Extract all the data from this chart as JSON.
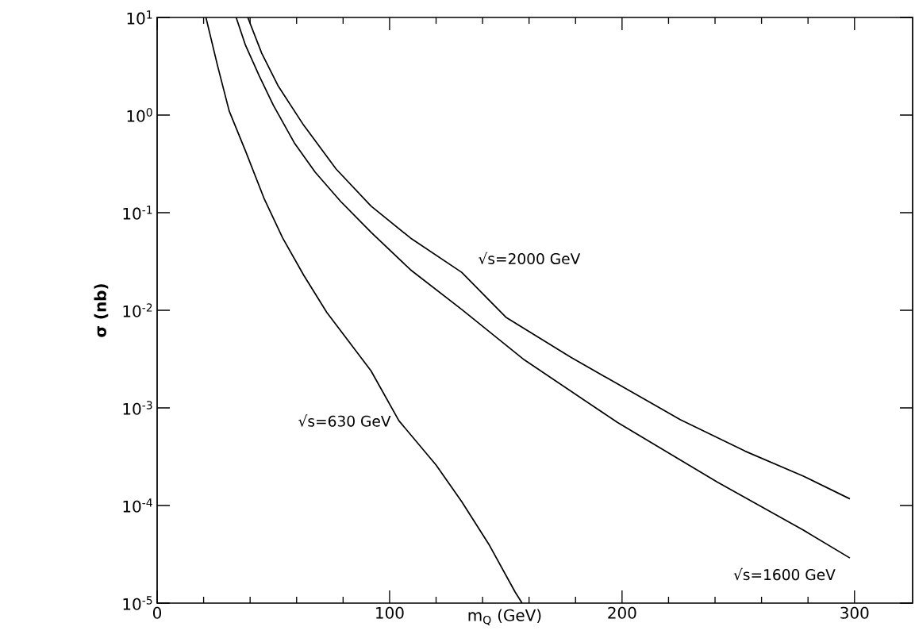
{
  "chart_data": {
    "type": "line",
    "xlabel": "m$_{Q}$ (GeV)",
    "ylabel": "σ (nb)",
    "log": "y",
    "grid": false,
    "marker": "none",
    "line_style": "solid",
    "xlim": [
      0,
      325
    ],
    "ylim": [
      1e-05,
      10
    ],
    "xticks": [
      0,
      100,
      200,
      300
    ],
    "yticks": [
      {
        "value": 10,
        "label": "10$^{1}$"
      },
      {
        "value": 1,
        "label": "10$^{0}$"
      },
      {
        "value": 0.1,
        "label": "10$^{-1}$"
      },
      {
        "value": 0.01,
        "label": "10$^{-2}$"
      },
      {
        "value": 0.001,
        "label": "10$^{-3}$"
      },
      {
        "value": 0.0001,
        "label": "10$^{-4}$"
      },
      {
        "value": 1e-05,
        "label": "10$^{-5}$"
      }
    ],
    "series": [
      {
        "name": "√s=630 GeV",
        "color": "#000000",
        "x": [
          21,
          26,
          31,
          38,
          46,
          54,
          63,
          73,
          92,
          104,
          120,
          131,
          143,
          154,
          157
        ],
        "values": [
          10,
          3.2,
          1.1,
          0.43,
          0.14,
          0.055,
          0.023,
          0.0095,
          0.0024,
          0.00074,
          0.00026,
          0.00011,
          3.9e-05,
          1.3e-05,
          1e-05
        ]
      },
      {
        "name": "√s=1600 GeV",
        "color": "#000000",
        "x": [
          34,
          38,
          44,
          50,
          59,
          68,
          79,
          92,
          109,
          131,
          158,
          198,
          241,
          278,
          298
        ],
        "values": [
          10,
          5.2,
          2.5,
          1.26,
          0.52,
          0.26,
          0.13,
          0.063,
          0.026,
          0.0102,
          0.0031,
          0.00071,
          0.000174,
          5.6e-05,
          2.9e-05
        ]
      },
      {
        "name": "√s=2000 GeV",
        "color": "#000000",
        "x": [
          39,
          45,
          52,
          63,
          77,
          92,
          109,
          131,
          150,
          178,
          225,
          253,
          278,
          298
        ],
        "values": [
          10,
          4.3,
          2.0,
          0.79,
          0.28,
          0.117,
          0.055,
          0.0245,
          0.0085,
          0.0033,
          0.00076,
          0.00036,
          0.0002,
          0.000117
        ]
      }
    ]
  }
}
